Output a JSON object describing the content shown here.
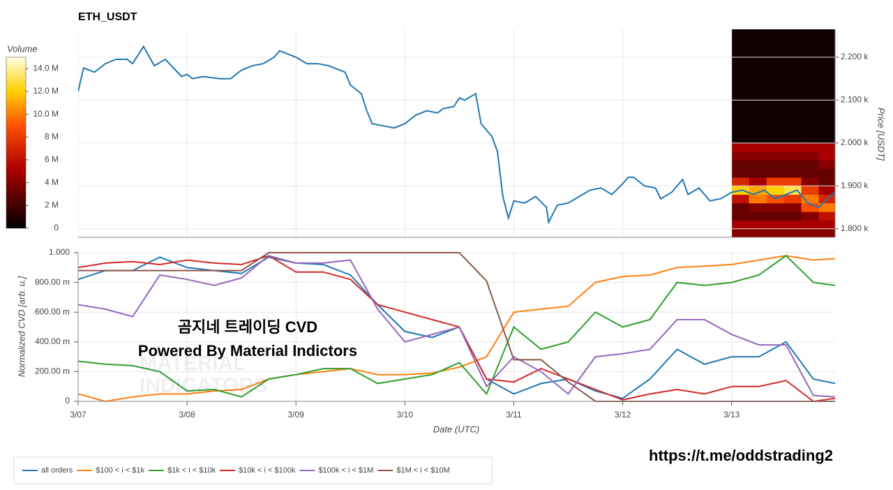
{
  "chart_data": [
    {
      "type": "line",
      "title": "ETH_USDT",
      "ylabel": "Price [USDT]",
      "xlim": [
        0,
        6.95
      ],
      "xticks": [
        0,
        1,
        2,
        3,
        4,
        5,
        6
      ],
      "ylim": [
        1780,
        2265
      ],
      "yticks": [
        {
          "value": 1800,
          "label": "1.800 k"
        },
        {
          "value": 1900,
          "label": "1.900 k"
        },
        {
          "value": 2000,
          "label": "2.000 k"
        },
        {
          "value": 2100,
          "label": "2.100 k"
        },
        {
          "value": 2200,
          "label": "2.200 k"
        }
      ],
      "grid": true,
      "x": [
        0,
        0.05,
        0.15,
        0.25,
        0.35,
        0.45,
        0.5,
        0.6,
        0.7,
        0.8,
        0.95,
        1.0,
        1.05,
        1.15,
        1.3,
        1.4,
        1.5,
        1.6,
        1.7,
        1.8,
        1.85,
        1.9,
        2.0,
        2.1,
        2.2,
        2.3,
        2.45,
        2.5,
        2.6,
        2.65,
        2.7,
        2.8,
        2.9,
        3.0,
        3.1,
        3.2,
        3.3,
        3.35,
        3.45,
        3.5,
        3.55,
        3.65,
        3.7,
        3.8,
        3.85,
        3.9,
        3.95,
        4.0,
        4.1,
        4.2,
        4.3,
        4.32,
        4.4,
        4.5,
        4.6,
        4.7,
        4.8,
        4.9,
        5.0,
        5.05,
        5.1,
        5.2,
        5.3,
        5.35,
        5.45,
        5.55,
        5.6,
        5.7,
        5.8,
        5.9,
        6.0,
        6.1,
        6.2,
        6.3,
        6.4,
        6.5,
        6.6,
        6.7,
        6.8,
        6.9,
        6.95
      ],
      "series": [
        {
          "color": "#1f77b4",
          "values": [
            2120,
            2175,
            2165,
            2185,
            2195,
            2195,
            2185,
            2225,
            2180,
            2195,
            2155,
            2160,
            2150,
            2155,
            2150,
            2150,
            2170,
            2180,
            2185,
            2200,
            2215,
            2210,
            2200,
            2185,
            2185,
            2180,
            2165,
            2135,
            2115,
            2075,
            2045,
            2040,
            2035,
            2045,
            2065,
            2075,
            2070,
            2080,
            2085,
            2105,
            2100,
            2115,
            2045,
            2015,
            1980,
            1875,
            1825,
            1865,
            1860,
            1875,
            1850,
            1815,
            1855,
            1860,
            1875,
            1890,
            1895,
            1880,
            1905,
            1920,
            1920,
            1900,
            1895,
            1870,
            1885,
            1915,
            1880,
            1895,
            1865,
            1870,
            1885,
            1890,
            1880,
            1890,
            1870,
            1880,
            1890,
            1860,
            1850,
            1875,
            1885
          ]
        }
      ]
    },
    {
      "type": "heatmap",
      "colorbar_title": "Volume",
      "xlim": [
        0,
        6.95
      ],
      "ylim": [
        1780,
        2265
      ],
      "x_edges": [
        6.0,
        6.16,
        6.32,
        6.48,
        6.64,
        6.8,
        6.95
      ],
      "y_edges": [
        1780,
        1800,
        1820,
        1840,
        1860,
        1880,
        1900,
        1920,
        1940,
        1960,
        1980,
        2000,
        2265
      ],
      "zlim": [
        0,
        15000000
      ],
      "zticks": [
        0,
        {
          "value": 2000000,
          "label": "2 M"
        },
        {
          "value": 4000000,
          "label": "4 M"
        },
        {
          "value": 6000000,
          "label": "6 M"
        },
        {
          "value": 8000000,
          "label": "8 M"
        },
        {
          "value": 10000000,
          "label": "10.0 M"
        },
        {
          "value": 12000000,
          "label": "12.0 M"
        },
        {
          "value": 14000000,
          "label": "14.0 M"
        }
      ],
      "z": [
        [
          4000000,
          4000000,
          4000000,
          4000000,
          4000000,
          4000000
        ],
        [
          5000000,
          5000000,
          5000000,
          5000000,
          5000000,
          5000000
        ],
        [
          3000000,
          3000000,
          3000000,
          3000000,
          4000000,
          6000000
        ],
        [
          3000000,
          4000000,
          4000000,
          4000000,
          9000000,
          10000000
        ],
        [
          6000000,
          10000000,
          9000000,
          8000000,
          10000000,
          7000000
        ],
        [
          12000000,
          11000000,
          12000000,
          13000000,
          8000000,
          5000000
        ],
        [
          7000000,
          5000000,
          8000000,
          8000000,
          4000000,
          3000000
        ],
        [
          3000000,
          3000000,
          3000000,
          3000000,
          3000000,
          3000000
        ],
        [
          3000000,
          3000000,
          3000000,
          3000000,
          3000000,
          4000000
        ],
        [
          4000000,
          4000000,
          4000000,
          4000000,
          4000000,
          5000000
        ],
        [
          5000000,
          5000000,
          5000000,
          5000000,
          5000000,
          5000000
        ],
        [
          500000,
          500000,
          500000,
          500000,
          500000,
          500000
        ]
      ]
    },
    {
      "type": "line",
      "xlabel": "Date (UTC)",
      "ylabel": "Normalized CVD [arb. u.]",
      "xlim": [
        0,
        6.95
      ],
      "xticks": [
        {
          "value": 0,
          "label": "3/07"
        },
        {
          "value": 1,
          "label": "3/08"
        },
        {
          "value": 2,
          "label": "3/09"
        },
        {
          "value": 3,
          "label": "3/10"
        },
        {
          "value": 4,
          "label": "3/11"
        },
        {
          "value": 5,
          "label": "3/12"
        },
        {
          "value": 6,
          "label": "3/13"
        }
      ],
      "ylim": [
        0,
        1
      ],
      "yticks": [
        0,
        {
          "value": 0.2,
          "label": "200.00 m"
        },
        {
          "value": 0.4,
          "label": "400.00 m"
        },
        {
          "value": 0.6,
          "label": "600.00 m"
        },
        {
          "value": 0.8,
          "label": "800.00 m"
        },
        {
          "value": 1,
          "label": "1.000"
        }
      ],
      "grid": true,
      "x": [
        0,
        0.25,
        0.5,
        0.75,
        1,
        1.25,
        1.5,
        1.75,
        2,
        2.25,
        2.5,
        2.75,
        3,
        3.25,
        3.5,
        3.75,
        4,
        4.25,
        4.5,
        4.75,
        5,
        5.25,
        5.5,
        5.75,
        6,
        6.25,
        6.5,
        6.75,
        6.95
      ],
      "series": [
        {
          "name": "all orders",
          "color": "#1f77b4",
          "values": [
            0.82,
            0.88,
            0.88,
            0.97,
            0.9,
            0.88,
            0.86,
            0.97,
            0.93,
            0.92,
            0.85,
            0.65,
            0.47,
            0.43,
            0.5,
            0.15,
            0.05,
            0.12,
            0.15,
            0.07,
            0.02,
            0.15,
            0.35,
            0.25,
            0.3,
            0.3,
            0.4,
            0.15,
            0.12
          ]
        },
        {
          "name": "$100 < i < $1k",
          "color": "#ff7f0e",
          "values": [
            0.05,
            0,
            0.03,
            0.05,
            0.05,
            0.07,
            0.08,
            0.15,
            0.18,
            0.2,
            0.22,
            0.18,
            0.18,
            0.19,
            0.23,
            0.3,
            0.6,
            0.62,
            0.64,
            0.8,
            0.84,
            0.85,
            0.9,
            0.91,
            0.92,
            0.95,
            0.98,
            0.95,
            0.96
          ]
        },
        {
          "name": "$1k < i < $10k",
          "color": "#2ca02c",
          "values": [
            0.27,
            0.25,
            0.24,
            0.2,
            0.07,
            0.08,
            0.03,
            0.15,
            0.18,
            0.22,
            0.22,
            0.12,
            0.15,
            0.18,
            0.26,
            0.05,
            0.5,
            0.35,
            0.4,
            0.6,
            0.5,
            0.55,
            0.8,
            0.78,
            0.8,
            0.85,
            0.98,
            0.8,
            0.78
          ]
        },
        {
          "name": "$10k < i < $100k",
          "color": "#d62728",
          "values": [
            0.9,
            0.93,
            0.94,
            0.92,
            0.95,
            0.93,
            0.92,
            0.98,
            0.87,
            0.87,
            0.82,
            0.65,
            0.6,
            0.55,
            0.5,
            0.15,
            0.13,
            0.22,
            0.15,
            0.08,
            0.01,
            0.05,
            0.08,
            0.05,
            0.1,
            0.1,
            0.14,
            0,
            0.02
          ]
        },
        {
          "name": "$100k < i < $1M",
          "color": "#9467bd",
          "values": [
            0.65,
            0.62,
            0.57,
            0.85,
            0.82,
            0.78,
            0.83,
            0.98,
            0.93,
            0.93,
            0.95,
            0.62,
            0.4,
            0.45,
            0.5,
            0.1,
            0.3,
            0.2,
            0.05,
            0.3,
            0.32,
            0.35,
            0.55,
            0.55,
            0.45,
            0.38,
            0.38,
            0.04,
            0.03
          ]
        },
        {
          "name": "$1M < i < $10M",
          "color": "#8c564b",
          "values": [
            0.88,
            0.88,
            0.88,
            0.88,
            0.88,
            0.88,
            0.88,
            1,
            1,
            1,
            1,
            1,
            1,
            1,
            1,
            0.81,
            0.28,
            0.28,
            0.13,
            0,
            0,
            0,
            0,
            0,
            0,
            0,
            0,
            0,
            0
          ]
        }
      ],
      "annotations": [
        "곰지네 트레이딩 CVD",
        "Powered By Material Indictors"
      ],
      "watermark": [
        "MATERIAL",
        "INDICATORS"
      ]
    },
    {
      "type": "text",
      "footer": "https://t.me/oddstrading2"
    }
  ]
}
